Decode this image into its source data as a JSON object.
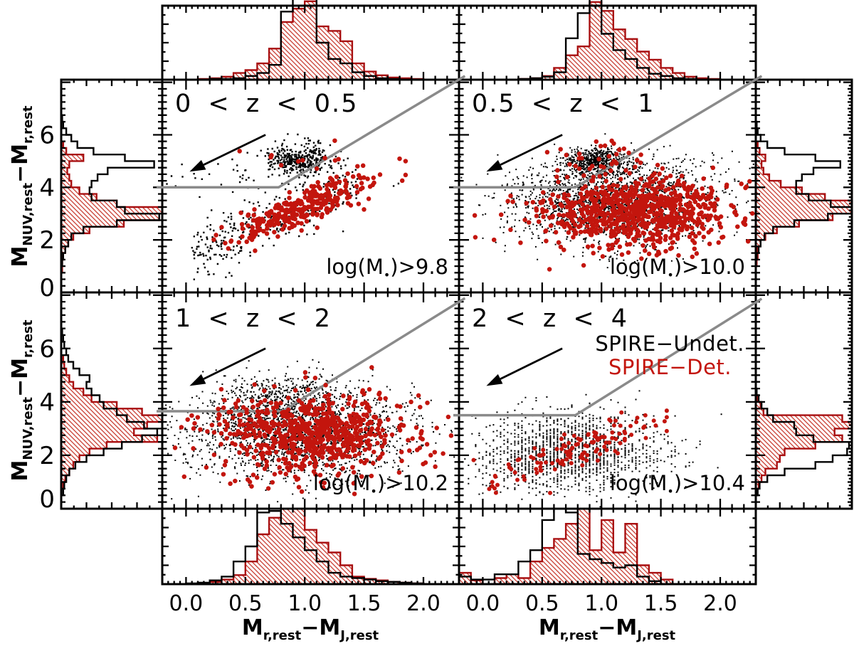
{
  "chart_data": {
    "type": "scatter",
    "description": "Four rest-frame color-color (NUV-r vs r-J) scatter panels in redshift bins with quiescent-galaxy selection wedge, dust-extinction arrow, and marginal histograms (top/bottom for x, left/right for y). Scatter clouds are parameterized as gaussian/sequence clusters; histograms are normalized bin heights (1.0 = full marginal-panel depth, >1 means clipped peak).",
    "colors": {
      "black": "#000000",
      "red": "#c3150d",
      "red_dark": "#a80f10",
      "red_hatch": "#cc4a40",
      "gray": "#8a8a8a",
      "background": "#ffffff"
    },
    "legend": {
      "undet": {
        "label": "SPIRE−Undet.",
        "color": "#000000"
      },
      "det": {
        "label": "SPIRE−Det.",
        "color": "#c3150d"
      }
    },
    "x_axis": {
      "title": {
        "m1": "M",
        "s1": "r,rest",
        "m2": "−M",
        "s2": "J,rest"
      },
      "range": [
        -0.2,
        2.3
      ],
      "ticks": {
        "labels": [
          "0.0",
          "0.5",
          "1.0",
          "1.5",
          "2.0"
        ],
        "values": [
          0,
          0.5,
          1.0,
          1.5,
          2.0
        ]
      }
    },
    "y_axis": {
      "title": {
        "m1": "M",
        "s1": "NUV,rest",
        "m2": "−M",
        "s2": "r,rest"
      },
      "range": [
        0,
        8.1
      ],
      "ticks": {
        "labels": [
          "0",
          "2",
          "4",
          "6"
        ],
        "values": [
          0,
          2,
          4,
          6
        ]
      }
    },
    "panels": [
      {
        "z_label": "0 < z < 0.5",
        "mass_label": {
          "prefix": "log(M",
          "sub": "•",
          "suffix": ")>9.8"
        },
        "wedge": {
          "y_horizontal": 4.0,
          "x_kink": 0.78,
          "slope": 2.7
        },
        "arrow": {
          "x_from": 0.67,
          "y_from": 6.0,
          "x_to": 0.03,
          "y_to": 4.6
        },
        "clusters": [
          {
            "series": "undet",
            "shape": "gauss",
            "n": 380,
            "x": 0.97,
            "y": 5.05,
            "sx": 0.13,
            "sy": 0.3,
            "pw": 2.4
          },
          {
            "series": "undet",
            "shape": "seq",
            "n": 310,
            "x0": 0.05,
            "x1": 1.45,
            "a": 1.3,
            "b": 1.85,
            "sy": 0.5,
            "pw": 2.4
          },
          {
            "series": "undet",
            "shape": "gauss",
            "n": 70,
            "x": 0.55,
            "y": 4.3,
            "sx": 0.5,
            "sy": 0.75,
            "pw": 2.4
          },
          {
            "series": "det",
            "shape": "seq",
            "n": 300,
            "x0": 0.22,
            "x1": 1.85,
            "xm": 0.98,
            "xs": 0.3,
            "a": 1.5,
            "b": 1.8,
            "sy": 0.33
          },
          {
            "series": "det",
            "shape": "gauss",
            "n": 10,
            "x": 1.05,
            "y": 5.15,
            "sx": 0.28,
            "sy": 0.4
          }
        ],
        "hist_x": {
          "bin_start": -0.2,
          "bin_width": 0.1,
          "undet": [
            0,
            0,
            0,
            0,
            0.01,
            0.01,
            0.02,
            0.05,
            0.09,
            0.2,
            0.92,
            1.28,
            1.15,
            0.5,
            0.28,
            0.22,
            0.1,
            0.05,
            0.02,
            0.01,
            0,
            0,
            0,
            0,
            0
          ],
          "det": [
            0,
            0,
            0,
            0.01,
            0.02,
            0.04,
            0.09,
            0.13,
            0.22,
            0.42,
            0.78,
            0.96,
            1.06,
            0.72,
            0.66,
            0.52,
            0.22,
            0.11,
            0.06,
            0.03,
            0.02,
            0.01,
            0,
            0,
            0
          ]
        },
        "hist_y": {
          "bin_start": 0,
          "bin_width": 0.25,
          "undet": [
            0,
            0,
            0,
            0,
            0.01,
            0.02,
            0.04,
            0.07,
            0.1,
            0.22,
            0.55,
            0.97,
            0.63,
            0.55,
            0.3,
            0.28,
            0.3,
            0.36,
            0.46,
            0.92,
            0.63,
            0.32,
            0.16,
            0.1,
            0.05,
            0.02,
            0.01,
            0,
            0,
            0
          ],
          "det": [
            0,
            0,
            0,
            0.01,
            0.01,
            0.02,
            0.04,
            0.07,
            0.12,
            0.28,
            0.62,
            0.97,
            1.0,
            0.55,
            0.35,
            0.18,
            0.1,
            0.08,
            0.06,
            0.08,
            0.22,
            0.05,
            0.02,
            0,
            0,
            0,
            0,
            0,
            0,
            0
          ]
        }
      },
      {
        "z_label": "0.5 < z < 1",
        "mass_label": {
          "prefix": "log(M",
          "sub": "•",
          "suffix": ")>10.0"
        },
        "wedge": {
          "y_horizontal": 4.0,
          "x_kink": 0.78,
          "slope": 2.7
        },
        "arrow": {
          "x_from": 0.67,
          "y_from": 6.0,
          "x_to": 0.03,
          "y_to": 4.6
        },
        "clusters": [
          {
            "series": "undet",
            "shape": "gauss",
            "n": 1900,
            "x": 1.07,
            "y": 3.35,
            "sx": 0.4,
            "sy": 0.78
          },
          {
            "series": "undet",
            "shape": "gauss",
            "n": 580,
            "x": 0.96,
            "y": 5.0,
            "sx": 0.13,
            "sy": 0.28
          },
          {
            "series": "undet",
            "shape": "gauss",
            "n": 140,
            "x": 1.55,
            "y": 4.4,
            "sx": 0.4,
            "sy": 0.5
          },
          {
            "series": "det",
            "shape": "gauss",
            "n": 800,
            "x": 1.3,
            "y": 3.1,
            "sx": 0.4,
            "sy": 0.66
          },
          {
            "series": "det",
            "shape": "gauss",
            "n": 28,
            "x": 1.03,
            "y": 5.15,
            "sx": 0.27,
            "sy": 0.35
          },
          {
            "series": "det",
            "shape": "gauss",
            "n": 15,
            "x": 1.55,
            "y": 1.6,
            "sx": 0.35,
            "sy": 0.45
          }
        ],
        "hist_x": {
          "bin_start": -0.2,
          "bin_width": 0.1,
          "undet": [
            0,
            0,
            0,
            0,
            0,
            0.01,
            0.02,
            0.04,
            0.1,
            0.56,
            0.9,
            1.22,
            0.62,
            0.4,
            0.28,
            0.16,
            0.08,
            0.05,
            0.02,
            0.01,
            0,
            0,
            0,
            0,
            0
          ],
          "det": [
            0,
            0,
            0,
            0,
            0,
            0.01,
            0.02,
            0.05,
            0.16,
            0.33,
            0.45,
            1.05,
            0.93,
            0.68,
            0.55,
            0.38,
            0.27,
            0.16,
            0.09,
            0.04,
            0.02,
            0.01,
            0,
            0,
            0
          ]
        },
        "hist_y": {
          "bin_start": 0,
          "bin_width": 0.25,
          "undet": [
            0,
            0,
            0,
            0,
            0,
            0.01,
            0.03,
            0.05,
            0.09,
            0.18,
            0.4,
            0.75,
            1.0,
            0.78,
            0.55,
            0.42,
            0.42,
            0.48,
            0.6,
            0.88,
            0.62,
            0.3,
            0.12,
            0.05,
            0.02,
            0.01,
            0,
            0,
            0,
            0
          ],
          "det": [
            0,
            0,
            0,
            0,
            0.01,
            0.02,
            0.02,
            0.05,
            0.1,
            0.22,
            0.45,
            0.8,
            1.0,
            1.0,
            0.72,
            0.48,
            0.26,
            0.14,
            0.08,
            0.06,
            0.1,
            0.04,
            0.02,
            0,
            0,
            0,
            0,
            0,
            0,
            0
          ]
        }
      },
      {
        "z_label": "1 < z < 2",
        "mass_label": {
          "prefix": "log(M",
          "sub": "•",
          "suffix": ")>10.2"
        },
        "wedge": {
          "y_horizontal": 3.65,
          "x_kink": 0.81,
          "slope": 2.75
        },
        "arrow": {
          "x_from": 0.67,
          "y_from": 6.0,
          "x_to": 0.03,
          "y_to": 4.6
        },
        "clusters": [
          {
            "series": "undet",
            "shape": "gauss",
            "n": 2100,
            "x": 0.95,
            "y": 2.9,
            "sx": 0.45,
            "sy": 0.85
          },
          {
            "series": "undet",
            "shape": "gauss",
            "n": 240,
            "x": 0.82,
            "y": 4.35,
            "sx": 0.25,
            "sy": 0.4
          },
          {
            "series": "det",
            "shape": "gauss",
            "n": 690,
            "x": 1.07,
            "y": 2.9,
            "sx": 0.42,
            "sy": 0.7
          },
          {
            "series": "det",
            "shape": "gauss",
            "n": 26,
            "x": 0.75,
            "y": 1.15,
            "sx": 0.33,
            "sy": 0.3
          }
        ],
        "hist_x": {
          "bin_start": -0.2,
          "bin_width": 0.1,
          "undet": [
            0,
            0,
            0.01,
            0.02,
            0.05,
            0.1,
            0.3,
            0.5,
            0.95,
            0.97,
            0.8,
            0.62,
            0.45,
            0.3,
            0.15,
            0.1,
            0.08,
            0.06,
            0.04,
            0.03,
            0.02,
            0.01,
            0,
            0,
            0
          ],
          "det": [
            0,
            0,
            0,
            0.01,
            0.03,
            0.06,
            0.12,
            0.3,
            0.66,
            0.88,
            1.0,
            1.0,
            0.72,
            0.55,
            0.42,
            0.25,
            0.1,
            0.07,
            0.05,
            0.03,
            0.02,
            0.01,
            0,
            0,
            0
          ]
        },
        "hist_y": {
          "bin_start": 0,
          "bin_width": 0.25,
          "undet": [
            0,
            0,
            0.02,
            0.03,
            0.05,
            0.08,
            0.14,
            0.25,
            0.42,
            0.6,
            0.8,
            0.95,
            0.82,
            0.65,
            0.55,
            0.42,
            0.38,
            0.3,
            0.25,
            0.28,
            0.18,
            0.12,
            0.07,
            0.05,
            0.03,
            0.02,
            0.01,
            0,
            0,
            0
          ],
          "det": [
            0,
            0,
            0,
            0.02,
            0.04,
            0.08,
            0.12,
            0.18,
            0.28,
            0.45,
            0.95,
            0.72,
            0.85,
            1.0,
            0.8,
            0.55,
            0.3,
            0.22,
            0.12,
            0.08,
            0.05,
            0.03,
            0.02,
            0,
            0,
            0,
            0,
            0,
            0,
            0
          ]
        }
      },
      {
        "z_label": "2 < z < 4",
        "mass_label": {
          "prefix": "log(M",
          "sub": "•",
          "suffix": ")>10.4"
        },
        "wedge": {
          "y_horizontal": 3.5,
          "x_kink": 0.78,
          "slope": 2.78
        },
        "arrow": {
          "x_from": 0.67,
          "y_from": 6.0,
          "x_to": 0.03,
          "y_to": 4.6
        },
        "clusters": [
          {
            "series": "undet",
            "shape": "gauss",
            "n": 1500,
            "x": 0.73,
            "y": 2.1,
            "sx": 0.38,
            "sy": 0.72,
            "snap": 0.03
          },
          {
            "series": "det",
            "shape": "seq",
            "n": 125,
            "x0": 0.08,
            "x1": 1.55,
            "xm": 0.8,
            "xs": 0.35,
            "a": 0.95,
            "b": 1.55,
            "sy": 0.33,
            "pw": 6.0
          },
          {
            "series": "det",
            "shape": "gauss",
            "n": 7,
            "x": 0.12,
            "y": 1.0,
            "sx": 0.2,
            "sy": 0.55,
            "pw": 6.0
          }
        ],
        "hist_x": {
          "bin_start": -0.2,
          "bin_width": 0.1,
          "undet": [
            0.1,
            0.06,
            0.06,
            0.13,
            0.13,
            0.3,
            0.45,
            0.85,
            1.0,
            0.95,
            0.4,
            0.33,
            0.28,
            0.22,
            0.25,
            0.1,
            0.04,
            0,
            0,
            0,
            0,
            0,
            0,
            0,
            0
          ],
          "det": [
            0.15,
            0.05,
            0,
            0.08,
            0.13,
            0.08,
            0.3,
            0.48,
            0.6,
            0.8,
            1.0,
            0.45,
            0.85,
            0.42,
            0.8,
            0.25,
            0.15,
            0.06,
            0,
            0,
            0,
            0,
            0,
            0,
            0
          ]
        },
        "hist_y": {
          "bin_start": 0,
          "bin_width": 0.25,
          "undet": [
            0,
            0,
            0.02,
            0.04,
            0.12,
            0.3,
            0.62,
            0.8,
            0.95,
            0.97,
            0.6,
            0.42,
            0.4,
            0.18,
            0.12,
            0.06,
            0.03,
            0.01,
            0,
            0,
            0,
            0,
            0,
            0,
            0,
            0,
            0,
            0,
            0,
            0
          ],
          "det": [
            0,
            0,
            0.01,
            0.03,
            0.06,
            0.1,
            0.22,
            0.25,
            0.3,
            0.62,
            0.9,
            0.82,
            1.0,
            0.9,
            0.08,
            0.05,
            0.02,
            0,
            0,
            0,
            0,
            0,
            0,
            0,
            0,
            0,
            0,
            0,
            0,
            0
          ]
        }
      }
    ]
  }
}
